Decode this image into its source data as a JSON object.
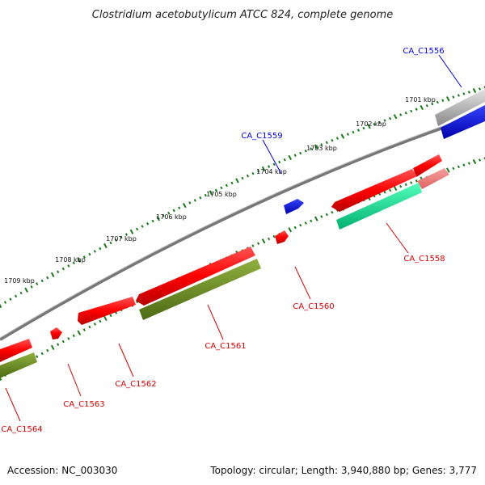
{
  "title": "Clostridium acetobutylicum ATCC 824, complete genome",
  "footer": {
    "accession": "Accession: NC_003030",
    "summary": "Topology: circular; Length: 3,940,880 bp; Genes: 3,777"
  },
  "ruler": {
    "labels": [
      "1701 kbp",
      "1702 kbp",
      "1703 kbp",
      "1704 kbp",
      "1705 kbp",
      "1706 kbp",
      "1707 kbp",
      "1708 kbp",
      "1709 kbp"
    ]
  },
  "genes": [
    {
      "id": "g1556",
      "label": "CA_C1556",
      "strand": "forward",
      "color": "#0000ee"
    },
    {
      "id": "g1559",
      "label": "CA_C1559",
      "strand": "forward",
      "color": "#0000ee"
    },
    {
      "id": "g1558",
      "label": "CA_C1558",
      "strand": "reverse",
      "color": "#dd0000"
    },
    {
      "id": "g1560",
      "label": "CA_C1560",
      "strand": "reverse",
      "color": "#dd0000"
    },
    {
      "id": "g1561",
      "label": "CA_C1561",
      "strand": "reverse",
      "color": "#dd0000"
    },
    {
      "id": "g1562",
      "label": "CA_C1562",
      "strand": "reverse",
      "color": "#dd0000"
    },
    {
      "id": "g1563",
      "label": "CA_C1563",
      "strand": "reverse",
      "color": "#dd0000"
    },
    {
      "id": "g1564",
      "label": "CA_C1564",
      "strand": "reverse",
      "color": "#dd0000"
    }
  ],
  "colors": {
    "cds": "#ff0000",
    "cds_light": "#f08080",
    "forward": "#0000ee",
    "gray_feature": "#aaaaaa",
    "teal_feature": "#00ee99",
    "olive_feature": "#6b8e23",
    "backbone": "#777777",
    "tick": "#1a7a1a"
  }
}
